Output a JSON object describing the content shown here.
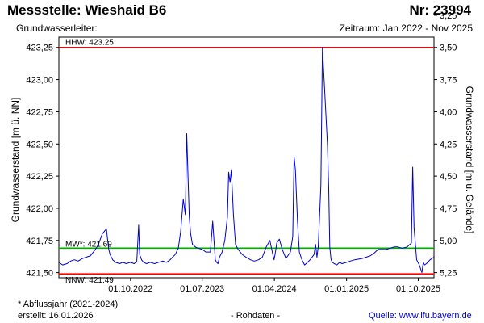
{
  "header": {
    "title": "Messstelle: Wieshaid B6",
    "number": "Nr: 23994",
    "aquifer_label": "Grundwasserleiter:",
    "period": "Zeitraum: Jan 2022 - Nov 2025"
  },
  "footer": {
    "footnote": "* Abflussjahr (2021-2024)",
    "created": "erstellt:  16.01.2026",
    "rawdata": "- Rohdaten -",
    "source_prefix": "Quelle: ",
    "source_link": "www.lfu.bayern.de"
  },
  "colors": {
    "series": "#0000cc",
    "hhw": "#ff0000",
    "nnw": "#ff0000",
    "mw": "#00aa00"
  },
  "chart_data": {
    "type": "line",
    "ylabel_left": "Grundwasserstand [m ü. NN]",
    "ylabel_right": "Grundwasserstand [m u. Gelände]",
    "ylim": [
      421.46,
      423.33
    ],
    "yticks_left": [
      421.5,
      421.75,
      422.0,
      422.25,
      422.5,
      422.75,
      423.0,
      423.25
    ],
    "yticks_left_labels": [
      "421,50",
      "421,75",
      "422,00",
      "422,25",
      "422,50",
      "422,75",
      "423,00",
      "423,25"
    ],
    "right_axis_zero_level": 426.75,
    "yticks_right_labels": [
      "3,25",
      "3,50",
      "3,75",
      "4,00",
      "4,25",
      "4,50",
      "4,75",
      "5,00",
      "5,25"
    ],
    "xlim": [
      "2022-01-01",
      "2025-11-30"
    ],
    "xticks": [
      "2022-10-01",
      "2023-07-01",
      "2024-04-01",
      "2025-01-01",
      "2025-10-01"
    ],
    "xtick_labels": [
      "01.10.2022",
      "01.07.2023",
      "01.04.2024",
      "01.01.2025",
      "01.10.2025"
    ],
    "reference_lines": [
      {
        "key": "hhw",
        "label": "HHW: 423.25",
        "value": 423.25
      },
      {
        "key": "mw",
        "label": "MW*: 421.69",
        "value": 421.69
      },
      {
        "key": "nnw",
        "label": "NNW: 421.49",
        "value": 421.49
      }
    ],
    "series": [
      {
        "x": [
          "2022-01-01",
          "2022-01-15",
          "2022-02-01",
          "2022-02-15",
          "2022-03-01",
          "2022-03-15",
          "2022-04-01",
          "2022-04-15",
          "2022-05-01",
          "2022-05-20",
          "2022-06-01",
          "2022-06-15",
          "2022-07-01",
          "2022-07-10",
          "2022-07-15",
          "2022-07-25",
          "2022-08-05",
          "2022-08-20",
          "2022-09-01",
          "2022-09-15",
          "2022-10-01",
          "2022-10-15",
          "2022-10-25",
          "2022-11-01",
          "2022-11-05",
          "2022-11-12",
          "2022-11-20",
          "2022-12-01",
          "2022-12-15",
          "2023-01-01",
          "2023-01-15",
          "2023-02-01",
          "2023-02-15",
          "2023-03-01",
          "2023-03-10",
          "2023-03-20",
          "2023-04-01",
          "2023-04-10",
          "2023-04-20",
          "2023-04-28",
          "2023-05-03",
          "2023-05-08",
          "2023-05-13",
          "2023-05-18",
          "2023-05-25",
          "2023-06-05",
          "2023-06-15",
          "2023-07-01",
          "2023-07-15",
          "2023-08-01",
          "2023-08-10",
          "2023-08-20",
          "2023-08-25",
          "2023-08-30",
          "2023-09-05",
          "2023-09-15",
          "2023-09-25",
          "2023-10-05",
          "2023-10-10",
          "2023-10-15",
          "2023-10-20",
          "2023-10-28",
          "2023-11-05",
          "2023-11-15",
          "2023-12-01",
          "2023-12-15",
          "2024-01-01",
          "2024-01-15",
          "2024-02-01",
          "2024-02-15",
          "2024-03-01",
          "2024-03-15",
          "2024-03-25",
          "2024-03-31",
          "2024-04-05",
          "2024-04-10",
          "2024-04-20",
          "2024-05-01",
          "2024-05-15",
          "2024-06-01",
          "2024-06-10",
          "2024-06-15",
          "2024-06-20",
          "2024-06-28",
          "2024-07-05",
          "2024-07-15",
          "2024-07-25",
          "2024-08-05",
          "2024-08-15",
          "2024-08-30",
          "2024-09-05",
          "2024-09-10",
          "2024-09-15",
          "2024-09-25",
          "2024-10-01",
          "2024-10-10",
          "2024-10-20",
          "2024-10-25",
          "2024-10-29",
          "2024-11-03",
          "2024-11-08",
          "2024-11-15",
          "2024-11-25",
          "2024-12-05",
          "2024-12-15",
          "2025-01-01",
          "2025-01-15",
          "2025-02-01",
          "2025-03-01",
          "2025-04-01",
          "2025-04-15",
          "2025-05-01",
          "2025-06-01",
          "2025-07-01",
          "2025-07-15",
          "2025-08-01",
          "2025-08-20",
          "2025-08-30",
          "2025-09-05",
          "2025-09-10",
          "2025-09-15",
          "2025-09-25",
          "2025-10-05",
          "2025-10-15",
          "2025-10-20",
          "2025-10-25",
          "2025-11-01",
          "2025-11-15",
          "2025-11-30"
        ],
        "y": [
          421.58,
          421.56,
          421.57,
          421.59,
          421.6,
          421.59,
          421.61,
          421.62,
          421.63,
          421.68,
          421.72,
          421.8,
          421.84,
          421.68,
          421.64,
          421.6,
          421.58,
          421.57,
          421.58,
          421.57,
          421.58,
          421.57,
          421.59,
          421.87,
          421.64,
          421.6,
          421.58,
          421.57,
          421.58,
          421.57,
          421.58,
          421.59,
          421.58,
          421.6,
          421.62,
          421.64,
          421.69,
          421.82,
          422.07,
          421.95,
          422.58,
          422.25,
          421.93,
          421.8,
          421.72,
          421.7,
          421.69,
          421.68,
          421.66,
          421.66,
          421.9,
          421.6,
          421.58,
          421.57,
          421.62,
          421.66,
          421.75,
          421.93,
          422.28,
          422.2,
          422.3,
          421.95,
          421.72,
          421.68,
          421.64,
          421.62,
          421.6,
          421.59,
          421.6,
          421.62,
          421.7,
          421.75,
          421.65,
          421.6,
          421.66,
          421.73,
          421.76,
          421.68,
          421.61,
          421.66,
          421.78,
          422.4,
          422.3,
          421.9,
          421.66,
          421.6,
          421.56,
          421.58,
          421.6,
          421.64,
          421.72,
          421.62,
          421.7,
          422.18,
          423.25,
          422.9,
          422.5,
          422.15,
          421.7,
          421.6,
          421.58,
          421.57,
          421.56,
          421.58,
          421.57,
          421.58,
          421.59,
          421.6,
          421.61,
          421.63,
          421.65,
          421.68,
          421.68,
          421.7,
          421.7,
          421.69,
          421.7,
          421.72,
          421.73,
          422.32,
          421.85,
          421.6,
          421.56,
          421.5,
          421.58,
          421.56,
          421.57,
          421.6,
          421.62
        ]
      }
    ]
  }
}
